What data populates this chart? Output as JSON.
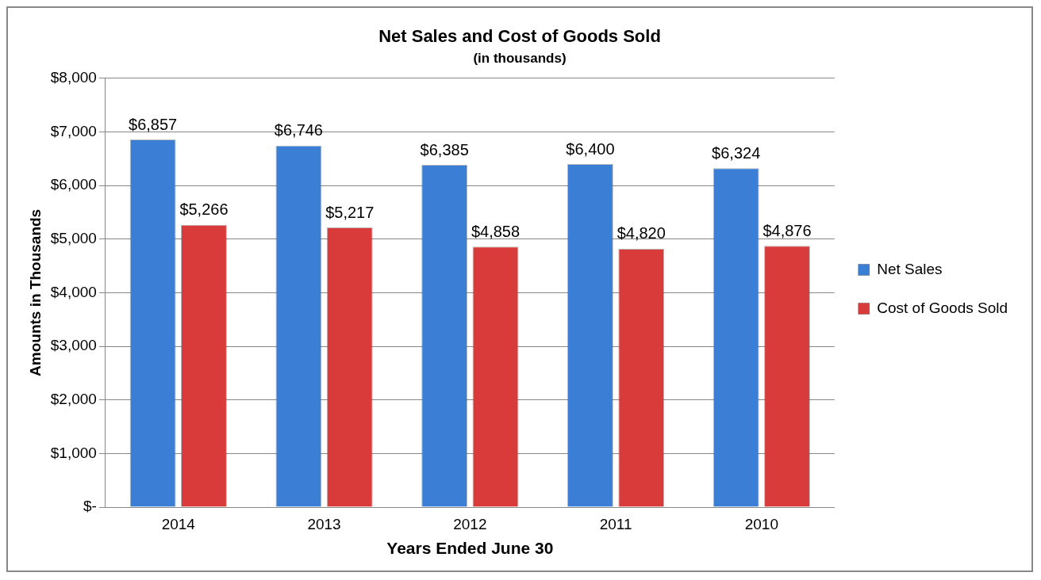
{
  "chart_data": {
    "type": "bar",
    "title": "Net Sales and Cost of Goods Sold",
    "subtitle": "(in thousands)",
    "xlabel": "Years Ended June 30",
    "ylabel": "Amounts in Thousands",
    "categories": [
      "2014",
      "2013",
      "2012",
      "2011",
      "2010"
    ],
    "series": [
      {
        "name": "Net Sales",
        "color": "#3a7fd5",
        "values": [
          6857,
          6746,
          6385,
          6400,
          6324
        ],
        "value_labels": [
          "$6,857",
          "$6,746",
          "$6,385",
          "$6,400",
          "$6,324"
        ]
      },
      {
        "name": "Cost of Goods Sold",
        "color": "#d93a3a",
        "values": [
          5266,
          5217,
          4858,
          4820,
          4876
        ],
        "value_labels": [
          "$5,266",
          "$5,217",
          "$4,858",
          "$4,820",
          "$4,876"
        ]
      }
    ],
    "ylim": [
      0,
      8000
    ],
    "yticks": [
      {
        "value": 0,
        "label": "$-"
      },
      {
        "value": 1000,
        "label": "$1,000"
      },
      {
        "value": 2000,
        "label": "$2,000"
      },
      {
        "value": 3000,
        "label": "$3,000"
      },
      {
        "value": 4000,
        "label": "$4,000"
      },
      {
        "value": 5000,
        "label": "$5,000"
      },
      {
        "value": 6000,
        "label": "$6,000"
      },
      {
        "value": 7000,
        "label": "$7,000"
      },
      {
        "value": 8000,
        "label": "$8,000"
      }
    ],
    "grid": "y",
    "legend": "right"
  }
}
